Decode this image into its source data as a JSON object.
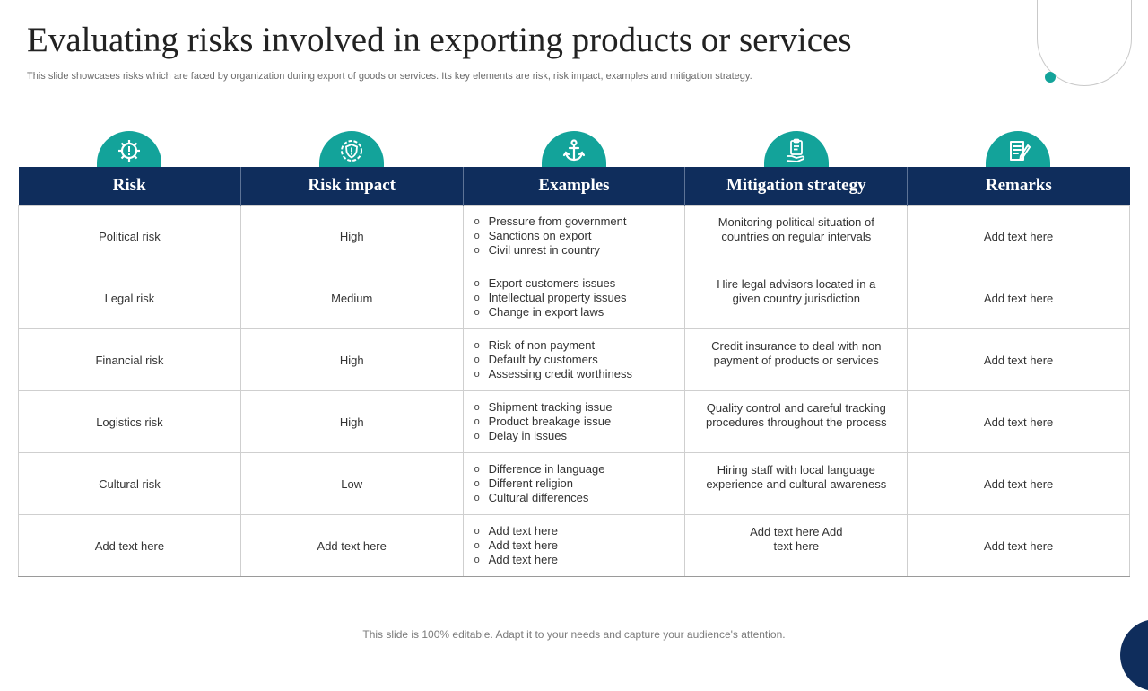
{
  "title": "Evaluating risks involved in exporting products or services",
  "subtitle": "This slide showcases risks which are faced by organization during export of goods or services. Its key elements are risk, risk impact, examples and mitigation strategy.",
  "icons": [
    "warning-gear-icon",
    "shield-gear-icon",
    "anchor-icon",
    "clipboard-hand-icon",
    "notes-icon"
  ],
  "colors": {
    "header": "#0f2d5c",
    "accent": "#13a39a"
  },
  "table": {
    "headers": [
      "Risk",
      "Risk impact",
      "Examples",
      "Mitigation strategy",
      "Remarks"
    ],
    "rows": [
      {
        "risk": "Political risk",
        "impact": "High",
        "examples": [
          "Pressure from government",
          "Sanctions on export",
          "Civil unrest in country"
        ],
        "mitigation": "Monitoring political situation of countries on regular intervals",
        "remarks": "Add text here"
      },
      {
        "risk": "Legal risk",
        "impact": "Medium",
        "examples": [
          "Export customers issues",
          "Intellectual property issues",
          "Change in export laws"
        ],
        "mitigation": "Hire legal advisors located in a given country jurisdiction",
        "remarks": "Add text here"
      },
      {
        "risk": "Financial risk",
        "impact": "High",
        "examples": [
          "Risk of non payment",
          "Default by customers",
          "Assessing credit worthiness"
        ],
        "mitigation": "Credit insurance to deal with non payment of products or services",
        "remarks": "Add text here"
      },
      {
        "risk": "Logistics risk",
        "impact": "High",
        "examples": [
          "Shipment tracking issue",
          "Product breakage issue",
          "Delay in issues"
        ],
        "mitigation": "Quality control and careful tracking procedures throughout the process",
        "remarks": "Add text here"
      },
      {
        "risk": "Cultural risk",
        "impact": "Low",
        "examples": [
          "Difference in language",
          "Different religion",
          "Cultural differences"
        ],
        "mitigation": "Hiring staff with local language experience and cultural awareness",
        "remarks": "Add text here"
      },
      {
        "risk": "Add text here",
        "impact": "Add text here",
        "examples": [
          "Add text here",
          "Add text here",
          "Add text here"
        ],
        "mitigation": "Add text here Add text here",
        "remarks": "Add text here"
      }
    ]
  },
  "footer": "This slide is 100% editable. Adapt it to your needs and capture your audience's attention."
}
